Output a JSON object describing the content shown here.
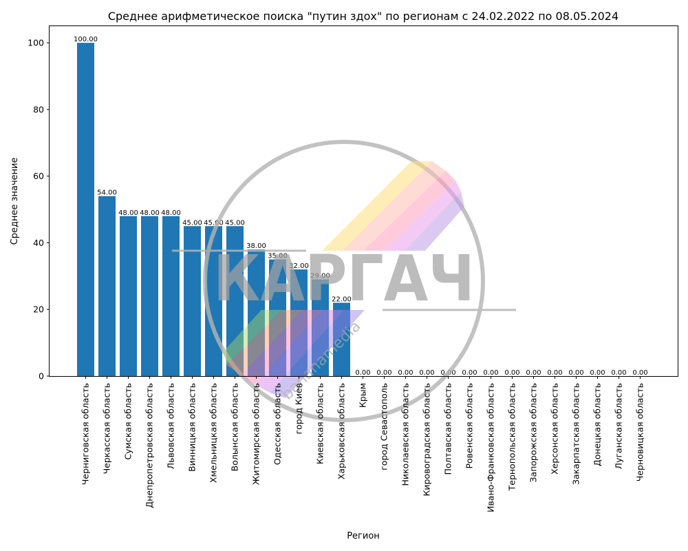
{
  "chart_data": {
    "type": "bar",
    "title": "Среднее арифметическое поиска \"путин здох\" по регионам с 24.02.2022 по 08.05.2024",
    "xlabel": "Регион",
    "ylabel": "Среднее значение",
    "ylim": [
      0,
      105
    ],
    "yticks": [
      0,
      20,
      40,
      60,
      80,
      100
    ],
    "grid": false,
    "bar_color": "#1f77b4",
    "categories": [
      "Черниговская область",
      "Черкасская область",
      "Сумская область",
      "Днепропетровская область",
      "Львовская область",
      "Винницкая область",
      "Хмельницкая область",
      "Волынская область",
      "Житомирская область",
      "Одесская область",
      "город Киев",
      "Киевская область",
      "Харьковская область",
      "Крым",
      "город Севастополь",
      "Николаевская область",
      "Кировоградская область",
      "Полтавская область",
      "Ровенская область",
      "Ивано-Франковская область",
      "Тернопольская область",
      "Запорожская область",
      "Херсонская область",
      "Закарпатская область",
      "Донецкая область",
      "Луганская область",
      "Черновицкая область"
    ],
    "values": [
      100,
      54,
      48,
      48,
      48,
      45,
      45,
      45,
      38,
      35,
      32,
      29,
      22,
      0,
      0,
      0,
      0,
      0,
      0,
      0,
      0,
      0,
      0,
      0,
      0,
      0,
      0
    ],
    "value_labels": [
      "100.00",
      "54.00",
      "48.00",
      "48.00",
      "48.00",
      "45.00",
      "45.00",
      "45.00",
      "38.00",
      "35.00",
      "32.00",
      "29.00",
      "22.00",
      "0.00",
      "0.00",
      "0.00",
      "0.00",
      "0.00",
      "0.00",
      "0.00",
      "0.00",
      "0.00",
      "0.00",
      "0.00",
      "0.00",
      "0.00",
      "0.00"
    ]
  },
  "watermark": {
    "logo_text": "КАРГАЧ",
    "sub_text": "bananamedia"
  }
}
